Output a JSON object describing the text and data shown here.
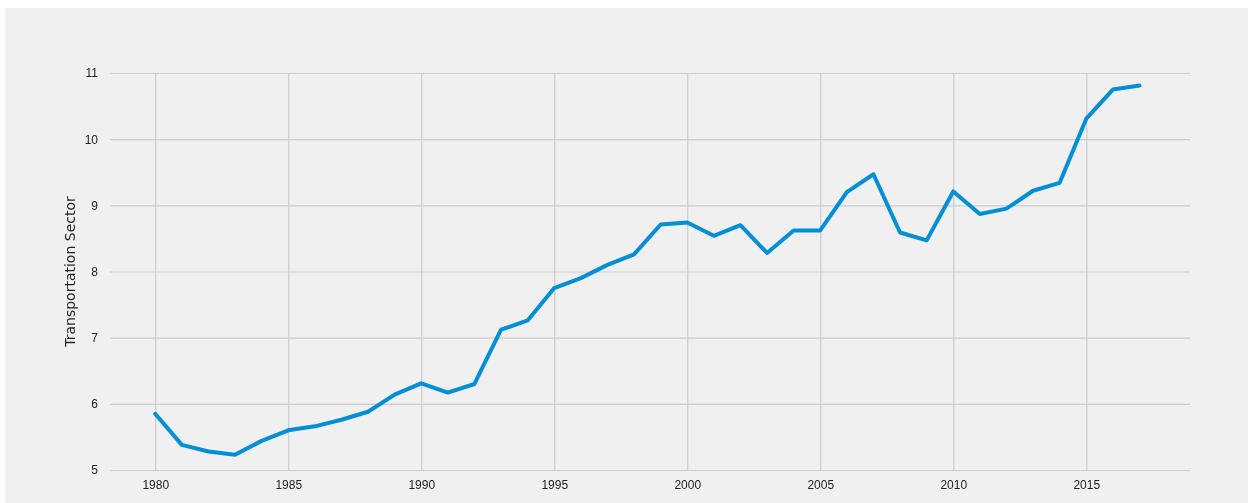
{
  "chart_data": {
    "type": "line",
    "ylabel": "Transportation Sector",
    "x": [
      1980,
      1981,
      1982,
      1983,
      1984,
      1985,
      1986,
      1987,
      1988,
      1989,
      1990,
      1991,
      1992,
      1993,
      1994,
      1995,
      1996,
      1997,
      1998,
      1999,
      2000,
      2001,
      2002,
      2003,
      2004,
      2005,
      2006,
      2007,
      2008,
      2009,
      2010,
      2011,
      2012,
      2013,
      2014,
      2015,
      2016,
      2017
    ],
    "series": [
      {
        "color": "#008fd5",
        "values": [
          5.85,
          5.38,
          5.28,
          5.23,
          5.44,
          5.6,
          5.66,
          5.76,
          5.88,
          6.14,
          6.31,
          6.17,
          6.3,
          7.12,
          7.26,
          7.75,
          7.9,
          8.1,
          8.26,
          8.71,
          8.74,
          8.54,
          8.7,
          8.28,
          8.62,
          8.62,
          9.2,
          9.47,
          8.59,
          8.47,
          9.21,
          8.87,
          8.95,
          9.22,
          9.34,
          10.31,
          10.75,
          10.81
        ]
      }
    ],
    "xlim": [
      1978.3,
      2018.9
    ],
    "xticks": [
      1980,
      1985,
      1990,
      1995,
      2000,
      2005,
      2010,
      2015
    ],
    "ylim": [
      5,
      11
    ],
    "yticks": [
      5,
      6,
      7,
      8,
      9,
      10,
      11
    ],
    "grid": true,
    "marker": "none",
    "line_style": "solid"
  }
}
